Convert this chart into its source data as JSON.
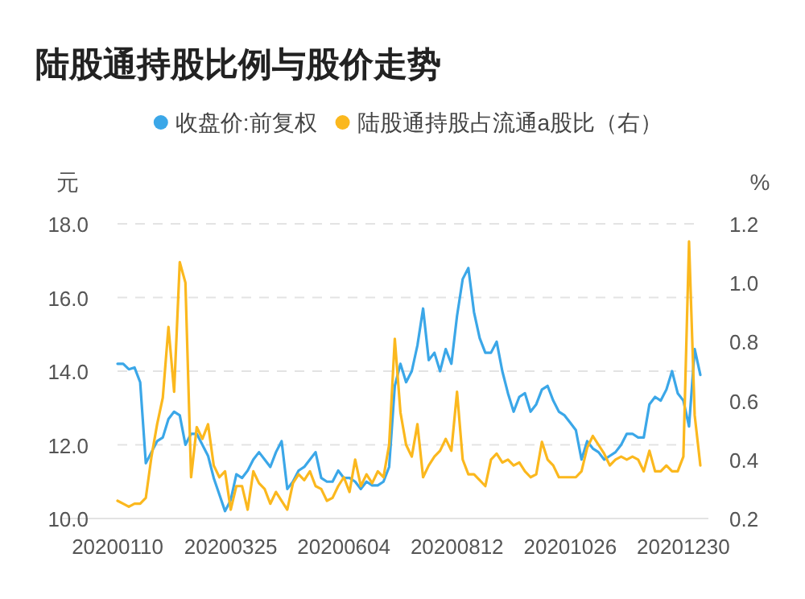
{
  "chart_data": {
    "type": "line",
    "title": "陆股通持股比例与股价走势",
    "ylabel": "元",
    "y2label": "%",
    "categories": [
      "20200110",
      null,
      null,
      null,
      null,
      null,
      null,
      null,
      null,
      null,
      null,
      null,
      null,
      null,
      null,
      null,
      null,
      null,
      null,
      null,
      "20200325",
      null,
      null,
      null,
      null,
      null,
      null,
      null,
      null,
      null,
      null,
      null,
      null,
      null,
      null,
      null,
      null,
      null,
      null,
      null,
      "20200604",
      null,
      null,
      null,
      null,
      null,
      null,
      null,
      null,
      null,
      null,
      null,
      null,
      null,
      null,
      null,
      null,
      null,
      null,
      null,
      "20200812",
      null,
      null,
      null,
      null,
      null,
      null,
      null,
      null,
      null,
      null,
      null,
      null,
      null,
      null,
      null,
      null,
      null,
      null,
      null,
      "20201026",
      null,
      null,
      null,
      null,
      null,
      null,
      null,
      null,
      null,
      null,
      null,
      null,
      null,
      null,
      null,
      null,
      null,
      null,
      null,
      "20201230",
      null,
      null,
      null
    ],
    "series": [
      {
        "name": "收盘价:前复权",
        "color": "#3ba7e8",
        "values": [
          14.2,
          14.2,
          14.05,
          14.1,
          13.7,
          11.5,
          11.8,
          12.1,
          12.2,
          12.7,
          12.9,
          12.8,
          12.0,
          12.3,
          12.3,
          12.0,
          11.7,
          11.1,
          10.65,
          10.2,
          10.5,
          11.2,
          11.1,
          11.3,
          11.6,
          11.8,
          11.6,
          11.4,
          11.8,
          12.1,
          10.8,
          11.0,
          11.3,
          11.4,
          11.6,
          11.8,
          11.1,
          11.0,
          11.0,
          11.3,
          11.1,
          11.1,
          11.0,
          10.8,
          11.0,
          10.9,
          10.9,
          11.0,
          11.4,
          13.6,
          14.2,
          13.7,
          14.0,
          14.7,
          15.7,
          14.3,
          14.5,
          14.0,
          14.6,
          14.2,
          15.5,
          16.5,
          16.8,
          15.6,
          14.9,
          14.5,
          14.5,
          14.8,
          14.0,
          13.4,
          12.9,
          13.3,
          13.4,
          12.9,
          13.1,
          13.5,
          13.6,
          13.2,
          12.9,
          12.8,
          12.6,
          12.4,
          11.6,
          12.1,
          11.9,
          11.8,
          11.6,
          11.7,
          11.8,
          12.0,
          12.3,
          12.3,
          12.2,
          12.2,
          13.1,
          13.3,
          13.2,
          13.5,
          14.0,
          13.4,
          13.2,
          12.5,
          14.6,
          13.9
        ]
      },
      {
        "name": "陆股通持股占流通a股比（右）",
        "color": "#fbb81e",
        "axis": "y2",
        "values": [
          0.26,
          0.25,
          0.24,
          0.25,
          0.25,
          0.27,
          0.41,
          0.52,
          0.61,
          0.85,
          0.63,
          1.07,
          1.0,
          0.34,
          0.51,
          0.47,
          0.52,
          0.38,
          0.34,
          0.36,
          0.23,
          0.31,
          0.31,
          0.23,
          0.36,
          0.32,
          0.3,
          0.25,
          0.29,
          0.26,
          0.23,
          0.32,
          0.35,
          0.33,
          0.36,
          0.31,
          0.3,
          0.26,
          0.27,
          0.31,
          0.34,
          0.29,
          0.4,
          0.31,
          0.35,
          0.32,
          0.36,
          0.34,
          0.45,
          0.81,
          0.56,
          0.45,
          0.41,
          0.52,
          0.34,
          0.38,
          0.41,
          0.43,
          0.47,
          0.43,
          0.63,
          0.4,
          0.35,
          0.35,
          0.33,
          0.31,
          0.4,
          0.42,
          0.39,
          0.4,
          0.38,
          0.39,
          0.36,
          0.34,
          0.35,
          0.46,
          0.4,
          0.38,
          0.34,
          0.34,
          0.34,
          0.34,
          0.36,
          0.44,
          0.48,
          0.45,
          0.42,
          0.38,
          0.4,
          0.41,
          0.4,
          0.41,
          0.4,
          0.36,
          0.43,
          0.36,
          0.36,
          0.38,
          0.36,
          0.36,
          0.41,
          1.14,
          0.55,
          0.38
        ]
      }
    ],
    "ylim": [
      10,
      18
    ],
    "yticks": [
      {
        "value": 10,
        "label": "10.0"
      },
      {
        "value": 12,
        "label": "12.0"
      },
      {
        "value": 14,
        "label": "14.0"
      },
      {
        "value": 16,
        "label": "16.0"
      },
      {
        "value": 18,
        "label": "18.0"
      }
    ],
    "y2lim": [
      0.2,
      1.2
    ],
    "y2ticks": [
      0.2,
      0.4,
      0.6,
      0.8,
      {
        "value": 1,
        "label": "1.0"
      },
      1.2
    ],
    "grid": "y",
    "legend": "top",
    "marker": "none",
    "line_style": "solid"
  }
}
